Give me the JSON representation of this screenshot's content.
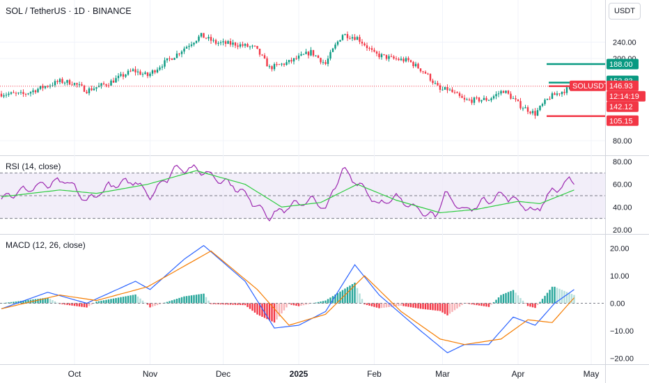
{
  "header": {
    "title": "SOL / TetherUS · 1D · BINANCE",
    "currency_unit": "USDT"
  },
  "chart_data": [
    {
      "type": "candlestick",
      "title": "SOL / TetherUS · 1D · BINANCE",
      "y_axis": {
        "scale": "log",
        "ticks": [
          "80.00",
          "200.00",
          "240.00"
        ],
        "range": [
          80,
          300
        ]
      },
      "x_axis": {
        "ticks": [
          "Oct",
          "Nov",
          "Dec",
          "2025",
          "Feb",
          "Mar",
          "Apr",
          "May"
        ]
      },
      "price_labels": [
        {
          "value": "188.00",
          "color": "#089981"
        },
        {
          "value": "152.83",
          "color": "#089981"
        },
        {
          "value": "SOLUSDT",
          "color": "#f23645"
        },
        {
          "value": "146.93",
          "color": "#f23645"
        },
        {
          "value": "12:14:19",
          "color": "#f23645"
        },
        {
          "value": "142.12",
          "color": "#f23645"
        },
        {
          "value": "105.15",
          "color": "#f23645"
        }
      ],
      "horizontal_levels": [
        {
          "value": 188.0,
          "color": "#089981"
        },
        {
          "value": 152.83,
          "color": "#089981"
        },
        {
          "value": 146.93,
          "color": "#f23645"
        },
        {
          "value": 105.15,
          "color": "#f23645"
        }
      ],
      "close_anchors": [
        {
          "date": "2024-09-01",
          "close": 135
        },
        {
          "date": "2024-09-10",
          "close": 134
        },
        {
          "date": "2024-09-25",
          "close": 155
        },
        {
          "date": "2024-09-30",
          "close": 153
        },
        {
          "date": "2024-10-06",
          "close": 140
        },
        {
          "date": "2024-10-15",
          "close": 152
        },
        {
          "date": "2024-10-25",
          "close": 175
        },
        {
          "date": "2024-10-31",
          "close": 165
        },
        {
          "date": "2024-11-12",
          "close": 210
        },
        {
          "date": "2024-11-22",
          "close": 258
        },
        {
          "date": "2024-11-28",
          "close": 238
        },
        {
          "date": "2024-12-06",
          "close": 235
        },
        {
          "date": "2024-12-14",
          "close": 225
        },
        {
          "date": "2024-12-20",
          "close": 180
        },
        {
          "date": "2024-12-28",
          "close": 192
        },
        {
          "date": "2025-01-06",
          "close": 215
        },
        {
          "date": "2025-01-12",
          "close": 188
        },
        {
          "date": "2025-01-19",
          "close": 262
        },
        {
          "date": "2025-01-25",
          "close": 252
        },
        {
          "date": "2025-02-01",
          "close": 210
        },
        {
          "date": "2025-02-08",
          "close": 200
        },
        {
          "date": "2025-02-15",
          "close": 195
        },
        {
          "date": "2025-02-22",
          "close": 170
        },
        {
          "date": "2025-02-28",
          "close": 140
        },
        {
          "date": "2025-03-03",
          "close": 142
        },
        {
          "date": "2025-03-10",
          "close": 125
        },
        {
          "date": "2025-03-20",
          "close": 127
        },
        {
          "date": "2025-03-26",
          "close": 140
        },
        {
          "date": "2025-04-02",
          "close": 118
        },
        {
          "date": "2025-04-08",
          "close": 108
        },
        {
          "date": "2025-04-14",
          "close": 130
        },
        {
          "date": "2025-04-24",
          "close": 146.93
        }
      ]
    },
    {
      "type": "line",
      "title": "RSI (14, close)",
      "y_axis": {
        "ticks": [
          "80.00",
          "60.00",
          "40.00",
          "20.00"
        ],
        "range": [
          20,
          80
        ]
      },
      "bands": {
        "upper": 70,
        "middle": 50,
        "lower": 30,
        "fill": "#ede7f6"
      },
      "series": [
        {
          "name": "RSI",
          "color": "#9c27b0",
          "anchors": [
            {
              "date": "2024-09-01",
              "value": 48
            },
            {
              "date": "2024-09-15",
              "value": 58
            },
            {
              "date": "2024-09-28",
              "value": 63
            },
            {
              "date": "2024-10-06",
              "value": 45
            },
            {
              "date": "2024-10-15",
              "value": 58
            },
            {
              "date": "2024-10-26",
              "value": 63
            },
            {
              "date": "2024-11-01",
              "value": 50
            },
            {
              "date": "2024-11-12",
              "value": 75
            },
            {
              "date": "2024-11-22",
              "value": 72
            },
            {
              "date": "2024-12-06",
              "value": 58
            },
            {
              "date": "2024-12-20",
              "value": 32
            },
            {
              "date": "2024-12-28",
              "value": 40
            },
            {
              "date": "2025-01-06",
              "value": 47
            },
            {
              "date": "2025-01-12",
              "value": 38
            },
            {
              "date": "2025-01-19",
              "value": 73
            },
            {
              "date": "2025-01-26",
              "value": 60
            },
            {
              "date": "2025-02-03",
              "value": 42
            },
            {
              "date": "2025-02-10",
              "value": 48
            },
            {
              "date": "2025-02-18",
              "value": 40
            },
            {
              "date": "2025-02-26",
              "value": 30
            },
            {
              "date": "2025-03-02",
              "value": 52
            },
            {
              "date": "2025-03-10",
              "value": 36
            },
            {
              "date": "2025-03-19",
              "value": 46
            },
            {
              "date": "2025-03-26",
              "value": 51
            },
            {
              "date": "2025-04-04",
              "value": 41
            },
            {
              "date": "2025-04-08",
              "value": 35
            },
            {
              "date": "2025-04-14",
              "value": 52
            },
            {
              "date": "2025-04-22",
              "value": 63
            },
            {
              "date": "2025-04-24",
              "value": 61
            }
          ]
        },
        {
          "name": "RSI-based MA",
          "color": "#2ecc40",
          "anchors": [
            {
              "date": "2024-09-01",
              "value": 49
            },
            {
              "date": "2024-09-25",
              "value": 55
            },
            {
              "date": "2024-10-10",
              "value": 52
            },
            {
              "date": "2024-10-31",
              "value": 60
            },
            {
              "date": "2024-11-20",
              "value": 72
            },
            {
              "date": "2024-12-10",
              "value": 60
            },
            {
              "date": "2024-12-25",
              "value": 40
            },
            {
              "date": "2025-01-10",
              "value": 44
            },
            {
              "date": "2025-01-25",
              "value": 60
            },
            {
              "date": "2025-02-10",
              "value": 46
            },
            {
              "date": "2025-02-28",
              "value": 35
            },
            {
              "date": "2025-03-15",
              "value": 38
            },
            {
              "date": "2025-04-01",
              "value": 45
            },
            {
              "date": "2025-04-10",
              "value": 43
            },
            {
              "date": "2025-04-24",
              "value": 55
            }
          ]
        }
      ]
    },
    {
      "type": "bar",
      "title": "MACD (12, 26, close)",
      "y_axis": {
        "ticks": [
          "20.00",
          "10.00",
          "0.00",
          "−10.00",
          "−20.00"
        ],
        "range": [
          -22,
          24
        ]
      },
      "series": [
        {
          "name": "MACD",
          "color": "#2962ff",
          "anchors": [
            {
              "date": "2024-09-01",
              "value": -2
            },
            {
              "date": "2024-09-20",
              "value": 4
            },
            {
              "date": "2024-10-06",
              "value": 0
            },
            {
              "date": "2024-10-26",
              "value": 8
            },
            {
              "date": "2024-11-01",
              "value": 5
            },
            {
              "date": "2024-11-15",
              "value": 16
            },
            {
              "date": "2024-11-23",
              "value": 21
            },
            {
              "date": "2024-12-10",
              "value": 8
            },
            {
              "date": "2024-12-22",
              "value": -9
            },
            {
              "date": "2025-01-01",
              "value": -8
            },
            {
              "date": "2025-01-12",
              "value": -3
            },
            {
              "date": "2025-01-24",
              "value": 14
            },
            {
              "date": "2025-02-03",
              "value": 3
            },
            {
              "date": "2025-02-20",
              "value": -10
            },
            {
              "date": "2025-03-03",
              "value": -18
            },
            {
              "date": "2025-03-10",
              "value": -15
            },
            {
              "date": "2025-03-20",
              "value": -15
            },
            {
              "date": "2025-03-30",
              "value": -5
            },
            {
              "date": "2025-04-08",
              "value": -8
            },
            {
              "date": "2025-04-16",
              "value": 0
            },
            {
              "date": "2025-04-24",
              "value": 5
            }
          ]
        },
        {
          "name": "Signal",
          "color": "#f57c00",
          "anchors": [
            {
              "date": "2024-09-01",
              "value": -2
            },
            {
              "date": "2024-09-25",
              "value": 3
            },
            {
              "date": "2024-10-10",
              "value": 1
            },
            {
              "date": "2024-10-31",
              "value": 6
            },
            {
              "date": "2024-11-26",
              "value": 19
            },
            {
              "date": "2024-12-15",
              "value": 5
            },
            {
              "date": "2024-12-28",
              "value": -8
            },
            {
              "date": "2025-01-12",
              "value": -4
            },
            {
              "date": "2025-01-28",
              "value": 10
            },
            {
              "date": "2025-02-12",
              "value": -3
            },
            {
              "date": "2025-02-28",
              "value": -13
            },
            {
              "date": "2025-03-10",
              "value": -15
            },
            {
              "date": "2025-03-25",
              "value": -13
            },
            {
              "date": "2025-04-05",
              "value": -6
            },
            {
              "date": "2025-04-15",
              "value": -7
            },
            {
              "date": "2025-04-24",
              "value": 2
            }
          ]
        }
      ],
      "histogram": {
        "colors": {
          "pos_up": "#26a69a",
          "pos_down": "#b2dfdb",
          "neg_down": "#f23645",
          "neg_up": "#f7b1b5"
        }
      }
    }
  ]
}
